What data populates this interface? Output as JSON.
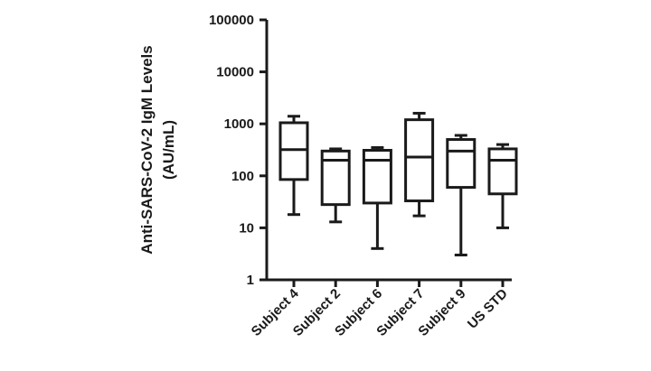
{
  "chart_data": {
    "type": "box",
    "ylabel_line1": "Anti-SARS-CoV-2 IgM Levels",
    "ylabel_line2": "(AU/mL)",
    "y_scale": "log10",
    "ylim": [
      1,
      100000
    ],
    "y_ticks": [
      {
        "value": 1,
        "label": "1"
      },
      {
        "value": 10,
        "label": "10"
      },
      {
        "value": 100,
        "label": "100"
      },
      {
        "value": 1000,
        "label": "1000"
      },
      {
        "value": 10000,
        "label": "10000"
      },
      {
        "value": 100000,
        "label": "100000"
      }
    ],
    "categories": [
      "Subject 4",
      "Subject 2",
      "Subject 6",
      "Subject 7",
      "Subject 9",
      "US STD"
    ],
    "boxes": [
      {
        "category": "Subject 4",
        "min": 18,
        "q1": 85,
        "median": 320,
        "q3": 1050,
        "max": 1400
      },
      {
        "category": "Subject 2",
        "min": 13,
        "q1": 28,
        "median": 200,
        "q3": 300,
        "max": 330
      },
      {
        "category": "Subject 6",
        "min": 4,
        "q1": 30,
        "median": 200,
        "q3": 310,
        "max": 350
      },
      {
        "category": "Subject 7",
        "min": 17,
        "q1": 33,
        "median": 230,
        "q3": 1200,
        "max": 1600
      },
      {
        "category": "Subject 9",
        "min": 3,
        "q1": 60,
        "median": 300,
        "q3": 500,
        "max": 600
      },
      {
        "category": "US STD",
        "min": 10,
        "q1": 45,
        "median": 200,
        "q3": 330,
        "max": 400
      }
    ],
    "grid": false,
    "legend": "none"
  }
}
